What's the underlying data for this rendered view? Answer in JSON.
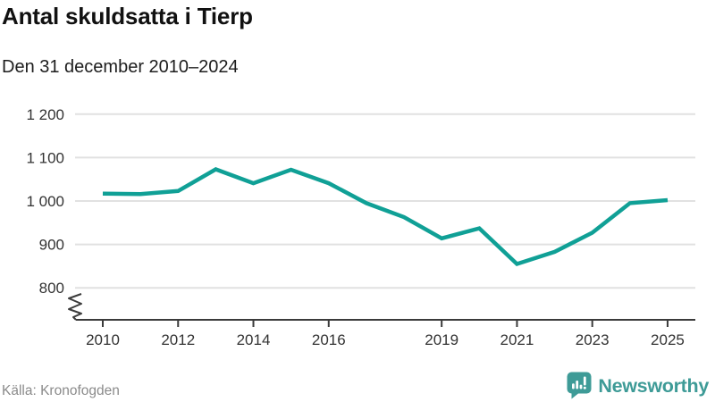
{
  "header": {
    "title": "Antal skuldsatta i Tierp",
    "subtitle": "Den 31 december 2010–2024"
  },
  "footer": {
    "source": "Källa: Kronofogden",
    "brand": "Newsworthy"
  },
  "colors": {
    "line": "#10a096",
    "brand": "#3e9b97",
    "grid": "#e1e1e1",
    "axis": "#3b3b3b",
    "tick_label": "#333333",
    "source_text": "#8b8b8b"
  },
  "chart_data": {
    "type": "line",
    "title": "Antal skuldsatta i Tierp",
    "subtitle": "Den 31 december 2010–2024",
    "x": [
      2010,
      2011,
      2012,
      2013,
      2014,
      2015,
      2016,
      2017,
      2018,
      2019,
      2020,
      2021,
      2022,
      2023,
      2024,
      2025
    ],
    "values": [
      1017,
      1016,
      1023,
      1073,
      1041,
      1072,
      1041,
      995,
      963,
      914,
      937,
      855,
      883,
      927,
      995,
      1002
    ],
    "series_name": "Antal skuldsatta",
    "x_tick_years": [
      2010,
      2012,
      2014,
      2016,
      2019,
      2021,
      2023,
      2025
    ],
    "x_tick_labels": [
      "2010",
      "2012",
      "2014",
      "2016",
      "2019",
      "2021",
      "2023",
      "2025"
    ],
    "y_ticks": [
      {
        "value": 1200,
        "label": "1 200"
      },
      {
        "value": 1100,
        "label": "1 100"
      },
      {
        "value": 1000,
        "label": "1 000"
      },
      {
        "value": 900,
        "label": "900"
      },
      {
        "value": 800,
        "label": "800"
      }
    ],
    "ylim": [
      800,
      1200
    ],
    "axis_break": true,
    "grid": "horizontal",
    "legend": "none"
  }
}
